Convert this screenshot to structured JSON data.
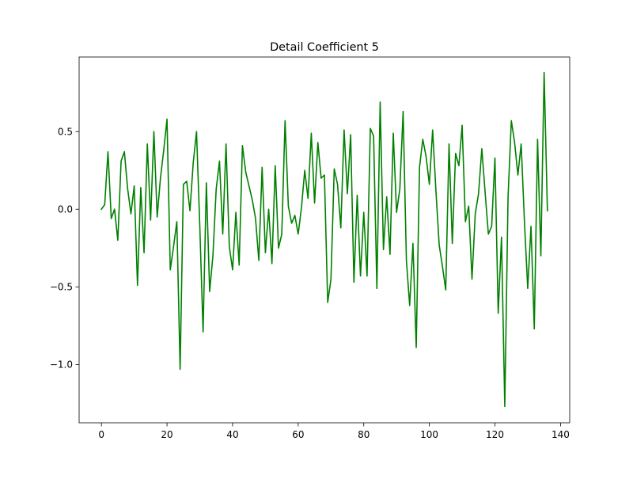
{
  "chart_data": {
    "type": "line",
    "title": "Detail Coefficient 5",
    "xlabel": "",
    "ylabel": "",
    "xlim": [
      -6.8,
      142.8
    ],
    "ylim": [
      -1.375,
      0.98
    ],
    "xticks": [
      0,
      20,
      40,
      60,
      80,
      100,
      120,
      140
    ],
    "xtick_labels": [
      "0",
      "20",
      "40",
      "60",
      "80",
      "100",
      "120",
      "140"
    ],
    "yticks": [
      -1.0,
      -0.5,
      0.0,
      0.5
    ],
    "ytick_labels": [
      "−1.0",
      "−0.5",
      "0.0",
      "0.5"
    ],
    "grid": false,
    "colors": {
      "line": "#008000"
    },
    "series": [
      {
        "x": [
          0,
          1,
          2,
          3,
          4,
          5,
          6,
          7,
          8,
          9,
          10,
          11,
          12,
          13,
          14,
          15,
          16,
          17,
          18,
          19,
          20,
          21,
          22,
          23,
          24,
          25,
          26,
          27,
          28,
          29,
          30,
          31,
          32,
          33,
          34,
          35,
          36,
          37,
          38,
          39,
          40,
          41,
          42,
          43,
          44,
          45,
          46,
          47,
          48,
          49,
          50,
          51,
          52,
          53,
          54,
          55,
          56,
          57,
          58,
          59,
          60,
          61,
          62,
          63,
          64,
          65,
          66,
          67,
          68,
          69,
          70,
          71,
          72,
          73,
          74,
          75,
          76,
          77,
          78,
          79,
          80,
          81,
          82,
          83,
          84,
          85,
          86,
          87,
          88,
          89,
          90,
          91,
          92,
          93,
          94,
          95,
          96,
          97,
          98,
          99,
          100,
          101,
          102,
          103,
          104,
          105,
          106,
          107,
          108,
          109,
          110,
          111,
          112,
          113,
          114,
          115,
          116,
          117,
          118,
          119,
          120,
          121,
          122,
          123,
          124,
          125,
          126,
          127,
          128,
          129,
          130,
          131,
          132,
          133,
          134,
          135,
          136
        ],
        "values": [
          0.0,
          0.03,
          0.37,
          -0.06,
          0.0,
          -0.2,
          0.31,
          0.37,
          0.13,
          -0.03,
          0.15,
          -0.49,
          0.14,
          -0.28,
          0.42,
          -0.07,
          0.5,
          -0.05,
          0.2,
          0.38,
          0.58,
          -0.39,
          -0.24,
          -0.08,
          -1.03,
          0.16,
          0.18,
          -0.01,
          0.3,
          0.5,
          -0.11,
          -0.79,
          0.17,
          -0.53,
          -0.3,
          0.13,
          0.31,
          -0.16,
          0.42,
          -0.24,
          -0.39,
          -0.02,
          -0.36,
          0.41,
          0.24,
          0.15,
          0.06,
          -0.06,
          -0.33,
          0.27,
          -0.28,
          0.0,
          -0.35,
          0.28,
          -0.25,
          -0.16,
          0.57,
          0.02,
          -0.09,
          -0.04,
          -0.16,
          0.01,
          0.25,
          0.07,
          0.49,
          0.04,
          0.43,
          0.2,
          0.22,
          -0.6,
          -0.45,
          0.26,
          0.16,
          -0.12,
          0.51,
          0.1,
          0.48,
          -0.47,
          0.09,
          -0.43,
          -0.02,
          -0.43,
          0.52,
          0.47,
          -0.51,
          0.69,
          -0.26,
          0.08,
          -0.29,
          0.49,
          -0.02,
          0.13,
          0.63,
          -0.33,
          -0.62,
          -0.22,
          -0.89,
          0.27,
          0.45,
          0.34,
          0.16,
          0.51,
          0.12,
          -0.23,
          -0.37,
          -0.52,
          0.42,
          -0.22,
          0.36,
          0.28,
          0.54,
          -0.08,
          0.02,
          -0.45,
          -0.03,
          0.1,
          0.39,
          0.11,
          -0.16,
          -0.11,
          0.33,
          -0.67,
          -0.18,
          -1.27,
          0.08,
          0.57,
          0.43,
          0.22,
          0.42,
          -0.08,
          -0.51,
          -0.11,
          -0.77,
          0.45,
          -0.3,
          0.88,
          -0.01
        ]
      }
    ]
  }
}
